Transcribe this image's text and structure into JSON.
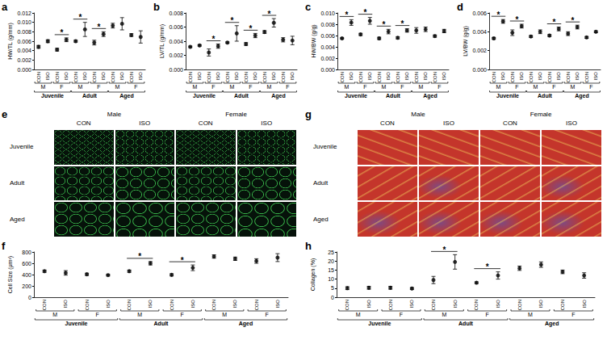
{
  "chart_data": [
    {
      "panel": "a",
      "type": "scatter",
      "y_label": "HW/TL (g/mm)",
      "categories": [
        "CON",
        "ISO",
        "CON",
        "ISO",
        "CON",
        "ISO",
        "CON",
        "ISO",
        "CON",
        "ISO",
        "CON",
        "ISO"
      ],
      "sex_labels": [
        "M",
        "F",
        "M",
        "F",
        "M",
        "F"
      ],
      "age_labels": [
        "Juvenile",
        "Adult",
        "Aged"
      ],
      "values": [
        0.0048,
        0.006,
        0.0042,
        0.0063,
        0.006,
        0.0085,
        0.0057,
        0.0075,
        0.0093,
        0.0097,
        0.0073,
        0.0069
      ],
      "errors": [
        0.0003,
        0.0003,
        0.0003,
        0.0004,
        0.0002,
        0.0015,
        0.0005,
        0.0005,
        0.0005,
        0.0013,
        0.0003,
        0.0013
      ],
      "significance": [
        {
          "text": "*",
          "between": [
            2,
            3
          ]
        },
        {
          "text": "*",
          "between": [
            4,
            5
          ]
        },
        {
          "text": "*",
          "between": [
            6,
            7
          ]
        }
      ],
      "color": "#000000",
      "marker": "circle",
      "grid": false,
      "ylim": [
        0,
        0.012
      ],
      "yticks": [
        {
          "value": 0,
          "label": "0.000"
        },
        0.002,
        0.004,
        0.006,
        0.008,
        {
          "value": 0.01,
          "label": "0.010"
        },
        0.012
      ]
    },
    {
      "panel": "b",
      "type": "scatter",
      "y_label": "LV/TL (g/mm)",
      "categories": [
        "CON",
        "ISO",
        "CON",
        "ISO",
        "CON",
        "ISO",
        "CON",
        "ISO",
        "CON",
        "ISO",
        "CON",
        "ISO"
      ],
      "sex_labels": [
        "M",
        "F",
        "M",
        "F",
        "M",
        "F"
      ],
      "age_labels": [
        "Juvenile",
        "Adult",
        "Aged"
      ],
      "values": [
        0.0032,
        0.0034,
        0.0024,
        0.0033,
        0.0038,
        0.0051,
        0.0036,
        0.0048,
        0.0053,
        0.0066,
        0.0042,
        0.0041
      ],
      "errors": [
        0.0001,
        0.0001,
        0.0005,
        0.0003,
        0.0001,
        0.0011,
        0.0002,
        0.0003,
        0.0002,
        0.0006,
        0.0003,
        0.0006
      ],
      "significance": [
        {
          "text": "*",
          "between": [
            2,
            3
          ]
        },
        {
          "text": "*",
          "between": [
            4,
            5
          ]
        },
        {
          "text": "*",
          "between": [
            6,
            7
          ]
        },
        {
          "text": "*",
          "between": [
            8,
            9
          ]
        }
      ],
      "color": "#000000",
      "marker": "circle",
      "grid": false,
      "ylim": [
        0,
        0.008
      ],
      "yticks": [
        {
          "value": 0,
          "label": "0.000"
        },
        0.002,
        0.004,
        0.006,
        0.008
      ]
    },
    {
      "panel": "c",
      "type": "scatter",
      "y_label": "HW/BW (g/g)",
      "categories": [
        "CON",
        "ISO",
        "CON",
        "ISO",
        "CON",
        "ISO",
        "CON",
        "ISO",
        "CON",
        "ISO",
        "CON",
        "ISO"
      ],
      "sex_labels": [
        "M",
        "F",
        "M",
        "F",
        "M",
        "F"
      ],
      "age_labels": [
        "Juvenile",
        "Adult",
        "Aged"
      ],
      "values": [
        0.0055,
        0.0083,
        0.0062,
        0.0086,
        0.0055,
        0.0067,
        0.0056,
        0.0069,
        0.0069,
        0.0071,
        0.0059,
        0.0068
      ],
      "errors": [
        0.0001,
        0.0005,
        0.0002,
        0.0006,
        0.0002,
        0.0004,
        0.0002,
        0.0003,
        0.0005,
        0.0004,
        0.0002,
        0.0003
      ],
      "significance": [
        {
          "text": "*",
          "between": [
            0,
            1
          ]
        },
        {
          "text": "*",
          "between": [
            2,
            3
          ]
        },
        {
          "text": "*",
          "between": [
            4,
            5
          ]
        },
        {
          "text": "*",
          "between": [
            6,
            7
          ]
        }
      ],
      "color": "#000000",
      "marker": "circle",
      "grid": false,
      "ylim": [
        0,
        0.01
      ],
      "yticks": [
        {
          "value": 0,
          "label": "0.000"
        },
        0.002,
        0.004,
        0.006,
        0.008,
        {
          "value": 0.01,
          "label": "0.010"
        }
      ]
    },
    {
      "panel": "d",
      "type": "scatter",
      "y_label": "LV/BW (g/g)",
      "categories": [
        "CON",
        "ISO",
        "CON",
        "ISO",
        "CON",
        "ISO",
        "CON",
        "ISO",
        "CON",
        "ISO",
        "CON",
        "ISO"
      ],
      "sex_labels": [
        "M",
        "F",
        "M",
        "F",
        "M",
        "F"
      ],
      "age_labels": [
        "Juvenile",
        "Adult",
        "Aged"
      ],
      "values": [
        0.0033,
        0.0051,
        0.0039,
        0.0046,
        0.0035,
        0.004,
        0.0036,
        0.0043,
        0.0038,
        0.0045,
        0.0034,
        0.004
      ],
      "errors": [
        0.0001,
        0.0002,
        0.0003,
        0.0002,
        0.0001,
        0.0002,
        0.0001,
        0.0002,
        0.0002,
        0.0002,
        0.0001,
        0.0001
      ],
      "significance": [
        {
          "text": "*",
          "between": [
            0,
            1
          ]
        },
        {
          "text": "*",
          "between": [
            2,
            3
          ]
        },
        {
          "text": "*",
          "between": [
            6,
            7
          ]
        },
        {
          "text": "*",
          "between": [
            8,
            9
          ]
        }
      ],
      "color": "#000000",
      "marker": "circle",
      "grid": false,
      "ylim": [
        0,
        0.006
      ],
      "yticks": [
        {
          "value": 0,
          "label": "0.000"
        },
        0.002,
        0.004,
        0.006
      ]
    },
    {
      "panel": "f",
      "type": "scatter",
      "y_label": "Cell Size (μm²)",
      "categories": [
        "CON",
        "ISO",
        "CON",
        "ISO",
        "CON",
        "ISO",
        "CON",
        "ISO",
        "CON",
        "ISO",
        "CON",
        "ISO"
      ],
      "sex_labels": [
        "M",
        "F",
        "M",
        "F",
        "M",
        "F"
      ],
      "age_labels": [
        "Juvenile",
        "Adult",
        "Aged"
      ],
      "values": [
        460,
        430,
        405,
        390,
        460,
        600,
        395,
        520,
        720,
        680,
        640,
        700
      ],
      "errors": [
        20,
        40,
        20,
        15,
        20,
        30,
        20,
        50,
        30,
        30,
        40,
        70
      ],
      "significance": [
        {
          "text": "*",
          "between": [
            4,
            5
          ]
        },
        {
          "text": "*",
          "between": [
            6,
            7
          ]
        }
      ],
      "color": "#000000",
      "marker": "circle",
      "grid": false,
      "ylim": [
        0,
        800
      ],
      "yticks": [
        0,
        200,
        400,
        600,
        800
      ]
    },
    {
      "panel": "h",
      "type": "scatter",
      "y_label": "Collagen (%)",
      "categories": [
        "CON",
        "ISO",
        "CON",
        "ISO",
        "CON",
        "ISO",
        "CON",
        "ISO",
        "CON",
        "ISO",
        "CON",
        "ISO"
      ],
      "sex_labels": [
        "M",
        "F",
        "M",
        "F",
        "M",
        "F"
      ],
      "age_labels": [
        "Juvenile",
        "Adult",
        "Aged"
      ],
      "values": [
        5,
        5.2,
        5.2,
        4.8,
        9.5,
        19.5,
        8,
        12,
        16,
        18,
        14,
        12
      ],
      "errors": [
        0.8,
        0.8,
        0.8,
        0.5,
        2,
        4,
        0.5,
        2,
        1.2,
        1.5,
        1,
        1.5
      ],
      "significance": [
        {
          "text": "*",
          "between": [
            4,
            5
          ]
        },
        {
          "text": "*",
          "between": [
            6,
            7
          ]
        }
      ],
      "color": "#000000",
      "marker": "circle",
      "grid": false,
      "ylim": [
        0,
        25
      ],
      "yticks": [
        0,
        5,
        10,
        15,
        20,
        25
      ]
    }
  ],
  "micrographs": [
    {
      "panel": "e",
      "columns": [
        "Male",
        "Female"
      ],
      "conditions": [
        "CON",
        "ISO"
      ],
      "rows": [
        "Juvenile",
        "Adult",
        "Aged"
      ]
    },
    {
      "panel": "g",
      "columns": [
        "Male",
        "Female"
      ],
      "conditions": [
        "CON",
        "ISO"
      ],
      "rows": [
        "Juvenile",
        "Adult",
        "Aged"
      ]
    }
  ]
}
